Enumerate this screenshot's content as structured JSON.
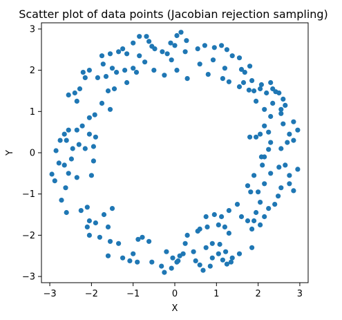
{
  "chart_data": {
    "type": "scatter",
    "title": "Scatter plot of data points (Jacobian rejection sampling)",
    "xlabel": "X",
    "ylabel": "Y",
    "xlim": [
      -3.2,
      3.2
    ],
    "ylim": [
      -3.15,
      3.15
    ],
    "xticks": [
      -3,
      -2,
      -1,
      0,
      1,
      2,
      3
    ],
    "yticks": [
      -3,
      -2,
      -1,
      0,
      1,
      2,
      3
    ],
    "grid": false,
    "legend": "none",
    "point_color": "#1f77b4",
    "points": [
      [
        0.15,
        2.92
      ],
      [
        0.05,
        2.84
      ],
      [
        -0.85,
        2.82
      ],
      [
        -0.68,
        2.82
      ],
      [
        0.28,
        2.72
      ],
      [
        -0.1,
        2.66
      ],
      [
        0.0,
        2.6
      ],
      [
        -0.62,
        2.7
      ],
      [
        -0.55,
        2.58
      ],
      [
        -0.48,
        2.52
      ],
      [
        -0.3,
        2.45
      ],
      [
        -0.18,
        2.4
      ],
      [
        0.25,
        2.45
      ],
      [
        0.55,
        2.52
      ],
      [
        0.72,
        2.6
      ],
      [
        0.95,
        2.55
      ],
      [
        1.12,
        2.6
      ],
      [
        1.25,
        2.5
      ],
      [
        -1.0,
        2.66
      ],
      [
        -1.25,
        2.52
      ],
      [
        -1.15,
        2.4
      ],
      [
        -1.35,
        2.45
      ],
      [
        -1.55,
        2.4
      ],
      [
        -1.75,
        2.35
      ],
      [
        -1.72,
        2.15
      ],
      [
        -1.5,
        2.05
      ],
      [
        -1.4,
        1.95
      ],
      [
        -1.2,
        2.0
      ],
      [
        -1.0,
        2.05
      ],
      [
        -0.85,
        2.35
      ],
      [
        -0.72,
        2.2
      ],
      [
        -0.5,
        2.0
      ],
      [
        -0.25,
        1.88
      ],
      [
        -0.08,
        2.25
      ],
      [
        0.05,
        2.0
      ],
      [
        0.3,
        1.8
      ],
      [
        0.6,
        2.15
      ],
      [
        0.92,
        2.25
      ],
      [
        1.2,
        2.05
      ],
      [
        1.15,
        1.8
      ],
      [
        0.8,
        1.9
      ],
      [
        1.38,
        2.35
      ],
      [
        1.55,
        2.3
      ],
      [
        1.6,
        2.02
      ],
      [
        1.68,
        1.95
      ],
      [
        1.8,
        2.1
      ],
      [
        1.85,
        1.75
      ],
      [
        1.65,
        1.7
      ],
      [
        1.55,
        1.6
      ],
      [
        1.3,
        1.72
      ],
      [
        -0.92,
        1.95
      ],
      [
        -1.15,
        1.7
      ],
      [
        -1.45,
        1.55
      ],
      [
        -1.65,
        1.85
      ],
      [
        -1.85,
        1.82
      ],
      [
        -2.05,
        2.0
      ],
      [
        -2.2,
        1.95
      ],
      [
        -2.15,
        1.82
      ],
      [
        -2.28,
        1.55
      ],
      [
        -2.4,
        1.45
      ],
      [
        -2.55,
        1.4
      ],
      [
        -2.35,
        1.25
      ],
      [
        -1.6,
        1.5
      ],
      [
        -1.75,
        1.2
      ],
      [
        -1.55,
        1.05
      ],
      [
        -1.92,
        0.92
      ],
      [
        -2.05,
        0.85
      ],
      [
        -2.22,
        0.65
      ],
      [
        -2.35,
        0.55
      ],
      [
        -2.55,
        0.55
      ],
      [
        -2.65,
        0.45
      ],
      [
        -2.6,
        0.3
      ],
      [
        -2.45,
        0.1
      ],
      [
        -2.3,
        0.2
      ],
      [
        -2.15,
        0.1
      ],
      [
        -1.95,
        0.15
      ],
      [
        -1.9,
        0.38
      ],
      [
        -2.05,
        0.45
      ],
      [
        -2.75,
        0.3
      ],
      [
        -2.85,
        0.05
      ],
      [
        -2.48,
        -0.15
      ],
      [
        -2.65,
        -0.3
      ],
      [
        -2.78,
        -0.25
      ],
      [
        -2.95,
        -0.52
      ],
      [
        -2.88,
        -0.68
      ],
      [
        -2.55,
        -0.5
      ],
      [
        -2.35,
        -0.6
      ],
      [
        -2.0,
        -0.55
      ],
      [
        -1.95,
        -0.2
      ],
      [
        -2.62,
        -0.85
      ],
      [
        -2.72,
        -1.15
      ],
      [
        -2.6,
        -1.45
      ],
      [
        -2.25,
        -1.4
      ],
      [
        -2.1,
        -1.32
      ],
      [
        -2.05,
        -1.65
      ],
      [
        -2.1,
        -1.8
      ],
      [
        -1.9,
        -1.7
      ],
      [
        -1.7,
        -1.5
      ],
      [
        -1.5,
        -1.35
      ],
      [
        -1.6,
        -1.8
      ],
      [
        -2.05,
        -2.0
      ],
      [
        -1.8,
        -2.05
      ],
      [
        -1.55,
        -2.15
      ],
      [
        -1.6,
        -2.5
      ],
      [
        -1.35,
        -2.2
      ],
      [
        -1.25,
        -2.55
      ],
      [
        -1.08,
        -2.62
      ],
      [
        -0.9,
        -2.65
      ],
      [
        -1.0,
        -2.45
      ],
      [
        -0.88,
        -2.1
      ],
      [
        -0.78,
        -2.05
      ],
      [
        -0.62,
        -2.15
      ],
      [
        -0.55,
        -2.65
      ],
      [
        -0.32,
        -2.75
      ],
      [
        -0.25,
        -2.9
      ],
      [
        -0.08,
        -2.8
      ],
      [
        0.05,
        -2.65
      ],
      [
        0.12,
        -2.5
      ],
      [
        0.2,
        -2.45
      ],
      [
        -0.2,
        -2.4
      ],
      [
        0.25,
        -2.2
      ],
      [
        0.45,
        -2.4
      ],
      [
        0.5,
        -2.62
      ],
      [
        0.6,
        -2.72
      ],
      [
        0.68,
        -2.85
      ],
      [
        0.85,
        -2.75
      ],
      [
        0.9,
        -2.55
      ],
      [
        1.05,
        -2.45
      ],
      [
        1.15,
        -2.6
      ],
      [
        1.25,
        -2.7
      ],
      [
        1.35,
        -2.65
      ],
      [
        1.38,
        -2.55
      ],
      [
        1.55,
        -2.45
      ],
      [
        1.22,
        -2.4
      ],
      [
        1.08,
        -2.22
      ],
      [
        0.9,
        -2.2
      ],
      [
        0.75,
        -2.3
      ],
      [
        0.6,
        -1.85
      ],
      [
        0.78,
        -1.8
      ],
      [
        1.05,
        -1.75
      ],
      [
        1.2,
        -1.8
      ],
      [
        1.3,
        -1.95
      ],
      [
        1.12,
        -1.55
      ],
      [
        0.95,
        -1.5
      ],
      [
        0.75,
        -1.55
      ],
      [
        1.3,
        -1.4
      ],
      [
        1.5,
        -1.25
      ],
      [
        1.6,
        -1.55
      ],
      [
        1.75,
        -1.65
      ],
      [
        1.9,
        -1.65
      ],
      [
        1.85,
        -1.85
      ],
      [
        1.85,
        -2.3
      ],
      [
        2.05,
        -1.75
      ],
      [
        2.15,
        -1.55
      ],
      [
        1.95,
        -1.45
      ],
      [
        2.05,
        -1.2
      ],
      [
        2.25,
        -1.35
      ],
      [
        2.4,
        -1.25
      ],
      [
        2.48,
        -1.05
      ],
      [
        2.55,
        -0.85
      ],
      [
        2.75,
        -0.75
      ],
      [
        2.85,
        -0.92
      ],
      [
        2.95,
        -0.4
      ],
      [
        2.75,
        -0.55
      ],
      [
        2.65,
        -0.3
      ],
      [
        2.5,
        -0.35
      ],
      [
        2.3,
        -0.5
      ],
      [
        2.15,
        -0.75
      ],
      [
        2.0,
        -0.95
      ],
      [
        1.82,
        -0.95
      ],
      [
        1.75,
        -0.8
      ],
      [
        1.9,
        -0.55
      ],
      [
        2.1,
        -0.3
      ],
      [
        2.15,
        -0.1
      ],
      [
        2.25,
        0.08
      ],
      [
        2.55,
        0.1
      ],
      [
        2.7,
        0.25
      ],
      [
        2.85,
        0.3
      ],
      [
        2.75,
        0.45
      ],
      [
        2.6,
        0.7
      ],
      [
        2.85,
        0.75
      ],
      [
        2.95,
        0.55
      ],
      [
        2.55,
        0.95
      ],
      [
        2.3,
        0.88
      ],
      [
        2.15,
        0.65
      ],
      [
        2.25,
        0.5
      ],
      [
        2.05,
        0.45
      ],
      [
        1.95,
        0.38
      ],
      [
        1.8,
        0.38
      ],
      [
        2.3,
        0.25
      ],
      [
        2.55,
        1.05
      ],
      [
        2.6,
        1.3
      ],
      [
        2.5,
        1.45
      ],
      [
        2.35,
        1.55
      ],
      [
        2.2,
        1.45
      ],
      [
        2.05,
        1.55
      ],
      [
        1.9,
        1.5
      ],
      [
        1.95,
        1.25
      ],
      [
        2.15,
        1.05
      ],
      [
        2.35,
        1.2
      ],
      [
        2.65,
        1.15
      ],
      [
        2.42,
        1.48
      ],
      [
        2.3,
        1.7
      ],
      [
        2.08,
        1.65
      ],
      [
        1.78,
        1.52
      ],
      [
        0.55,
        -1.9
      ],
      [
        0.3,
        -2.0
      ],
      [
        0.08,
        -2.62
      ],
      [
        -0.05,
        -2.55
      ],
      [
        2.08,
        -0.1
      ]
    ]
  }
}
